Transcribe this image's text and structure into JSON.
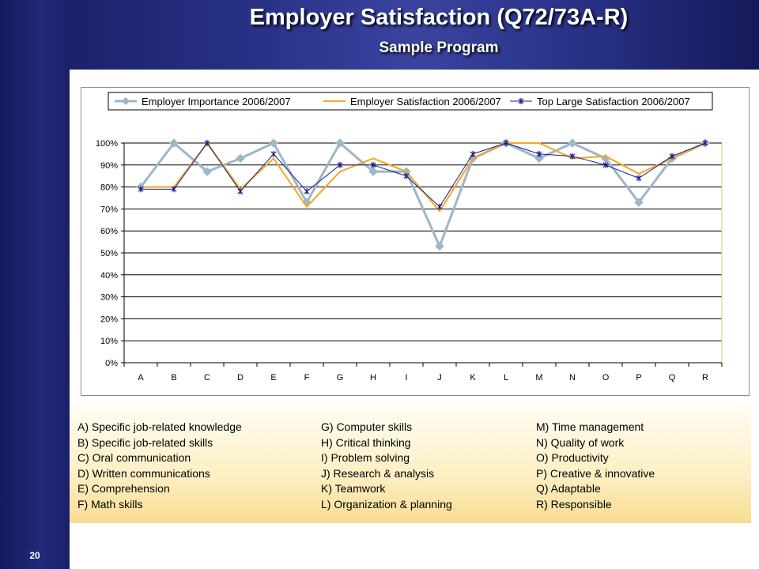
{
  "header": {
    "title": "Employer Satisfaction (Q72/73A-R)",
    "subtitle": "Sample Program"
  },
  "page_number": "20",
  "chart_data": {
    "type": "line",
    "categories": [
      "A",
      "B",
      "C",
      "D",
      "E",
      "F",
      "G",
      "H",
      "I",
      "J",
      "K",
      "L",
      "M",
      "N",
      "O",
      "P",
      "Q",
      "R"
    ],
    "ylim": [
      0,
      100
    ],
    "ytick_labels": [
      "0%",
      "10%",
      "20%",
      "30%",
      "40%",
      "50%",
      "60%",
      "70%",
      "80%",
      "90%",
      "100%"
    ],
    "grid": true,
    "legend_position": "top",
    "series": [
      {
        "name": "Employer Importance 2006/2007",
        "color": "#9bb7c8",
        "marker": "diamond",
        "values": [
          80,
          100,
          87,
          93,
          100,
          73,
          100,
          87,
          87,
          53,
          93,
          100,
          93,
          100,
          93,
          73,
          93,
          100
        ]
      },
      {
        "name": "Employer Satisfaction 2006/2007",
        "color": "#f5a623",
        "marker": "none",
        "values": [
          80,
          80,
          100,
          79,
          93,
          71,
          87,
          93,
          87,
          69,
          93,
          100,
          100,
          93,
          94,
          86,
          93,
          100
        ]
      },
      {
        "name": "Top Large Satisfaction 2006/2007",
        "color": "#1a1a8c",
        "marker": "star",
        "values": [
          79,
          79,
          100,
          78,
          95,
          78,
          90,
          90,
          85,
          71,
          95,
          100,
          95,
          94,
          90,
          84,
          94,
          100
        ]
      }
    ]
  },
  "category_legend": {
    "col1": [
      "A) Specific job-related knowledge",
      "B) Specific job-related skills",
      "C) Oral communication",
      "D) Written communications",
      "E) Comprehension",
      "F) Math skills"
    ],
    "col2": [
      "G) Computer skills",
      "H) Critical thinking",
      "I) Problem solving",
      "J) Research & analysis",
      "K) Teamwork",
      "L) Organization & planning"
    ],
    "col3": [
      "M) Time management",
      "N) Quality of work",
      "O) Productivity",
      "P) Creative & innovative",
      "Q) Adaptable",
      "R) Responsible"
    ]
  }
}
